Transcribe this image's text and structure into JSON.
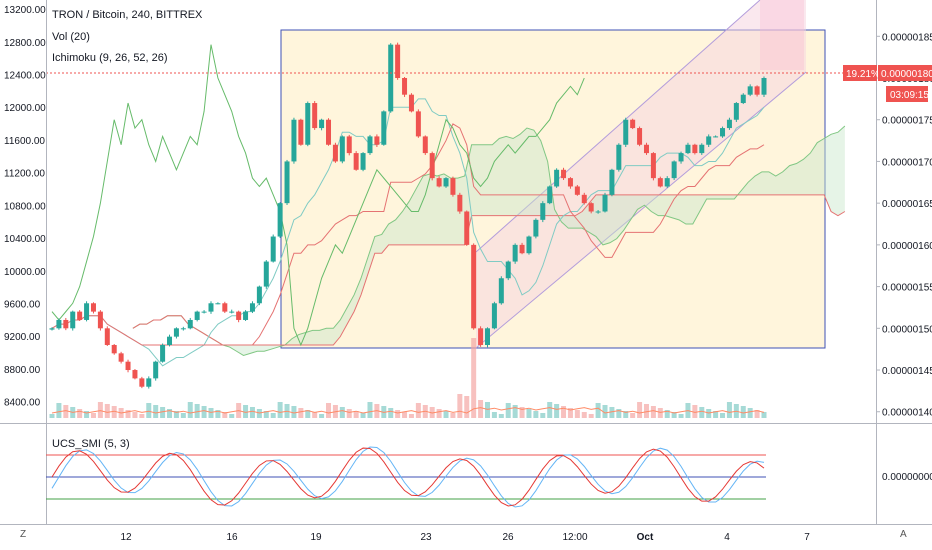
{
  "header": {
    "title": "TRON / Bitcoin, 240, BITTREX",
    "vol_label": "Vol (20)",
    "ichimoku_label": "Ichimoku (9, 26, 52, 26)"
  },
  "left_axis": {
    "ticks": [
      "13200.00",
      "12800.00",
      "12400.00",
      "12000.00",
      "11600.00",
      "11200.00",
      "10800.00",
      "10400.00",
      "10000.00",
      "9600.00",
      "9200.00",
      "8800.00",
      "8400.00"
    ],
    "range": [
      8200,
      13250
    ]
  },
  "right_axis": {
    "ticks": [
      "0.00000185",
      "0.00000180",
      "0.00000175",
      "0.00000170",
      "0.00000165",
      "0.00000160",
      "0.00000155",
      "0.00000150",
      "0.00000145",
      "0.00000140"
    ],
    "range": [
      1.3925e-06,
      1.8875e-06
    ]
  },
  "price_tags": {
    "change": "19.21%",
    "price": "0.00000180",
    "countdown": "03:09:15",
    "color": "#ef5350"
  },
  "indicator": {
    "label": "UCS_SMI (5, 3)",
    "zero_tick": "0.00000000",
    "upper_color": "#ef5350",
    "mid_color": "#3f51b5",
    "lower_color": "#43a047"
  },
  "x_axis": {
    "labels": [
      "12",
      "16",
      "19",
      "23",
      "26",
      "12:00",
      "Oct",
      "4",
      "7"
    ]
  },
  "corner": {
    "left": "Z",
    "right": "A"
  },
  "colors": {
    "up": "#26a69a",
    "down": "#ef5350",
    "rect_fill": "#fff3d6",
    "rect_border": "#3f51b5",
    "channel_fill": "#f5d5e0",
    "tenkan": "#4caf50",
    "kijun": "#e57373"
  },
  "chart_data": {
    "type": "candlestick",
    "title": "TRON / Bitcoin, 240, BITTREX",
    "axis_right_range": [
      1.4e-06,
      1.85e-06
    ],
    "axis_left_range": [
      8400,
      13200
    ],
    "last_price": 1.8e-06,
    "change_percent": "19.21%",
    "annotations": [
      "rectangle 0.00000148–0.00000184",
      "ascending parallel channel",
      "Ichimoku cloud",
      "Volume (20)"
    ],
    "close_series": [
      1.5e-06,
      1.51e-06,
      1.5e-06,
      1.52e-06,
      1.51e-06,
      1.53e-06,
      1.52e-06,
      1.5e-06,
      1.48e-06,
      1.47e-06,
      1.46e-06,
      1.45e-06,
      1.44e-06,
      1.43e-06,
      1.44e-06,
      1.46e-06,
      1.48e-06,
      1.49e-06,
      1.5e-06,
      1.5e-06,
      1.51e-06,
      1.52e-06,
      1.52e-06,
      1.53e-06,
      1.53e-06,
      1.52e-06,
      1.52e-06,
      1.51e-06,
      1.52e-06,
      1.53e-06,
      1.55e-06,
      1.58e-06,
      1.61e-06,
      1.65e-06,
      1.7e-06,
      1.75e-06,
      1.72e-06,
      1.77e-06,
      1.74e-06,
      1.75e-06,
      1.72e-06,
      1.7e-06,
      1.73e-06,
      1.71e-06,
      1.69e-06,
      1.71e-06,
      1.73e-06,
      1.72e-06,
      1.76e-06,
      1.84e-06,
      1.8e-06,
      1.78e-06,
      1.76e-06,
      1.73e-06,
      1.71e-06,
      1.68e-06,
      1.67e-06,
      1.68e-06,
      1.66e-06,
      1.64e-06,
      1.6e-06,
      1.5e-06,
      1.48e-06,
      1.5e-06,
      1.53e-06,
      1.56e-06,
      1.58e-06,
      1.6e-06,
      1.59e-06,
      1.61e-06,
      1.63e-06,
      1.65e-06,
      1.67e-06,
      1.69e-06,
      1.68e-06,
      1.67e-06,
      1.66e-06,
      1.65e-06,
      1.64e-06,
      1.64e-06,
      1.66e-06,
      1.69e-06,
      1.72e-06,
      1.75e-06,
      1.74e-06,
      1.72e-06,
      1.71e-06,
      1.68e-06,
      1.67e-06,
      1.68e-06,
      1.7e-06,
      1.71e-06,
      1.72e-06,
      1.71e-06,
      1.72e-06,
      1.73e-06,
      1.73e-06,
      1.74e-06,
      1.75e-06,
      1.77e-06,
      1.78e-06,
      1.79e-06,
      1.78e-06,
      1.8e-06
    ]
  }
}
